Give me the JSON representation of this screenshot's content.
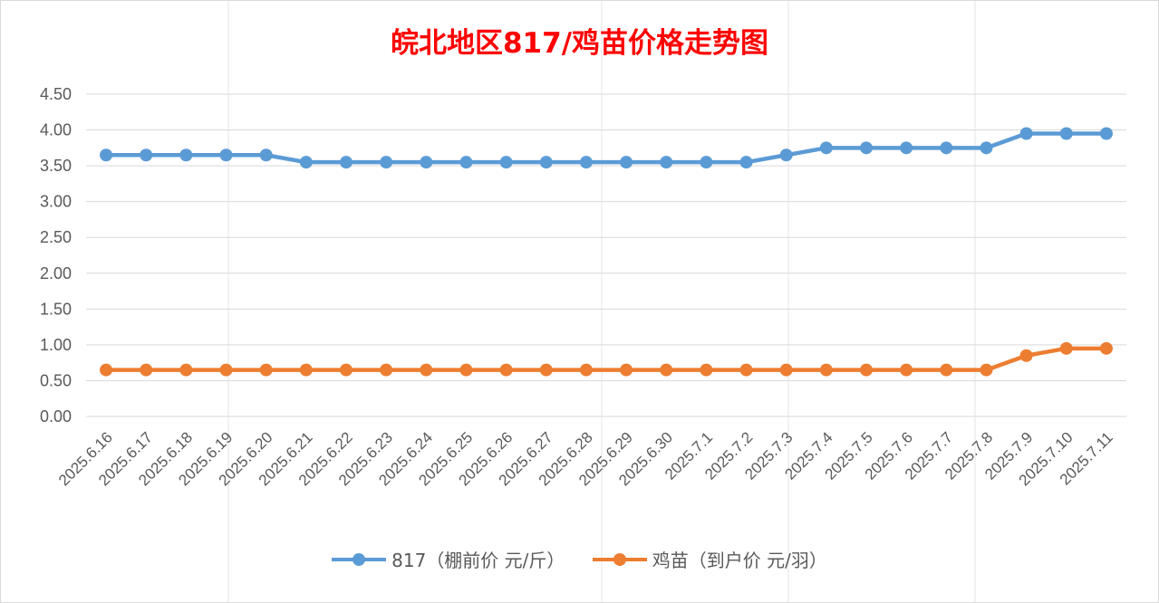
{
  "chart_data": {
    "type": "line",
    "title": "皖北地区817/鸡苗价格走势图",
    "categories": [
      "2025.6.16",
      "2025.6.17",
      "2025.6.18",
      "2025.6.19",
      "2025.6.20",
      "2025.6.21",
      "2025.6.22",
      "2025.6.23",
      "2025.6.24",
      "2025.6.25",
      "2025.6.26",
      "2025.6.27",
      "2025.6.28",
      "2025.6.29",
      "2025.6.30",
      "2025.7.1",
      "2025.7.2",
      "2025.7.3",
      "2025.7.4",
      "2025.7.5",
      "2025.7.6",
      "2025.7.7",
      "2025.7.8",
      "2025.7.9",
      "2025.7.10",
      "2025.7.11"
    ],
    "series": [
      {
        "name": "817（棚前价 元/斤）",
        "color": "#5b9bd5",
        "values": [
          3.65,
          3.65,
          3.65,
          3.65,
          3.65,
          3.55,
          3.55,
          3.55,
          3.55,
          3.55,
          3.55,
          3.55,
          3.55,
          3.55,
          3.55,
          3.55,
          3.55,
          3.65,
          3.75,
          3.75,
          3.75,
          3.75,
          3.75,
          3.95,
          3.95,
          3.95
        ]
      },
      {
        "name": "鸡苗（到户价 元/羽）",
        "color": "#ed7d31",
        "values": [
          0.65,
          0.65,
          0.65,
          0.65,
          0.65,
          0.65,
          0.65,
          0.65,
          0.65,
          0.65,
          0.65,
          0.65,
          0.65,
          0.65,
          0.65,
          0.65,
          0.65,
          0.65,
          0.65,
          0.65,
          0.65,
          0.65,
          0.65,
          0.85,
          0.95,
          0.95
        ]
      }
    ],
    "ylim": [
      0,
      4.5
    ],
    "yticks": [
      "0.00",
      "0.50",
      "1.00",
      "1.50",
      "2.00",
      "2.50",
      "3.00",
      "3.50",
      "4.00",
      "4.50"
    ],
    "grid": true,
    "legend_position": "bottom",
    "title_color": "#ff0000"
  }
}
